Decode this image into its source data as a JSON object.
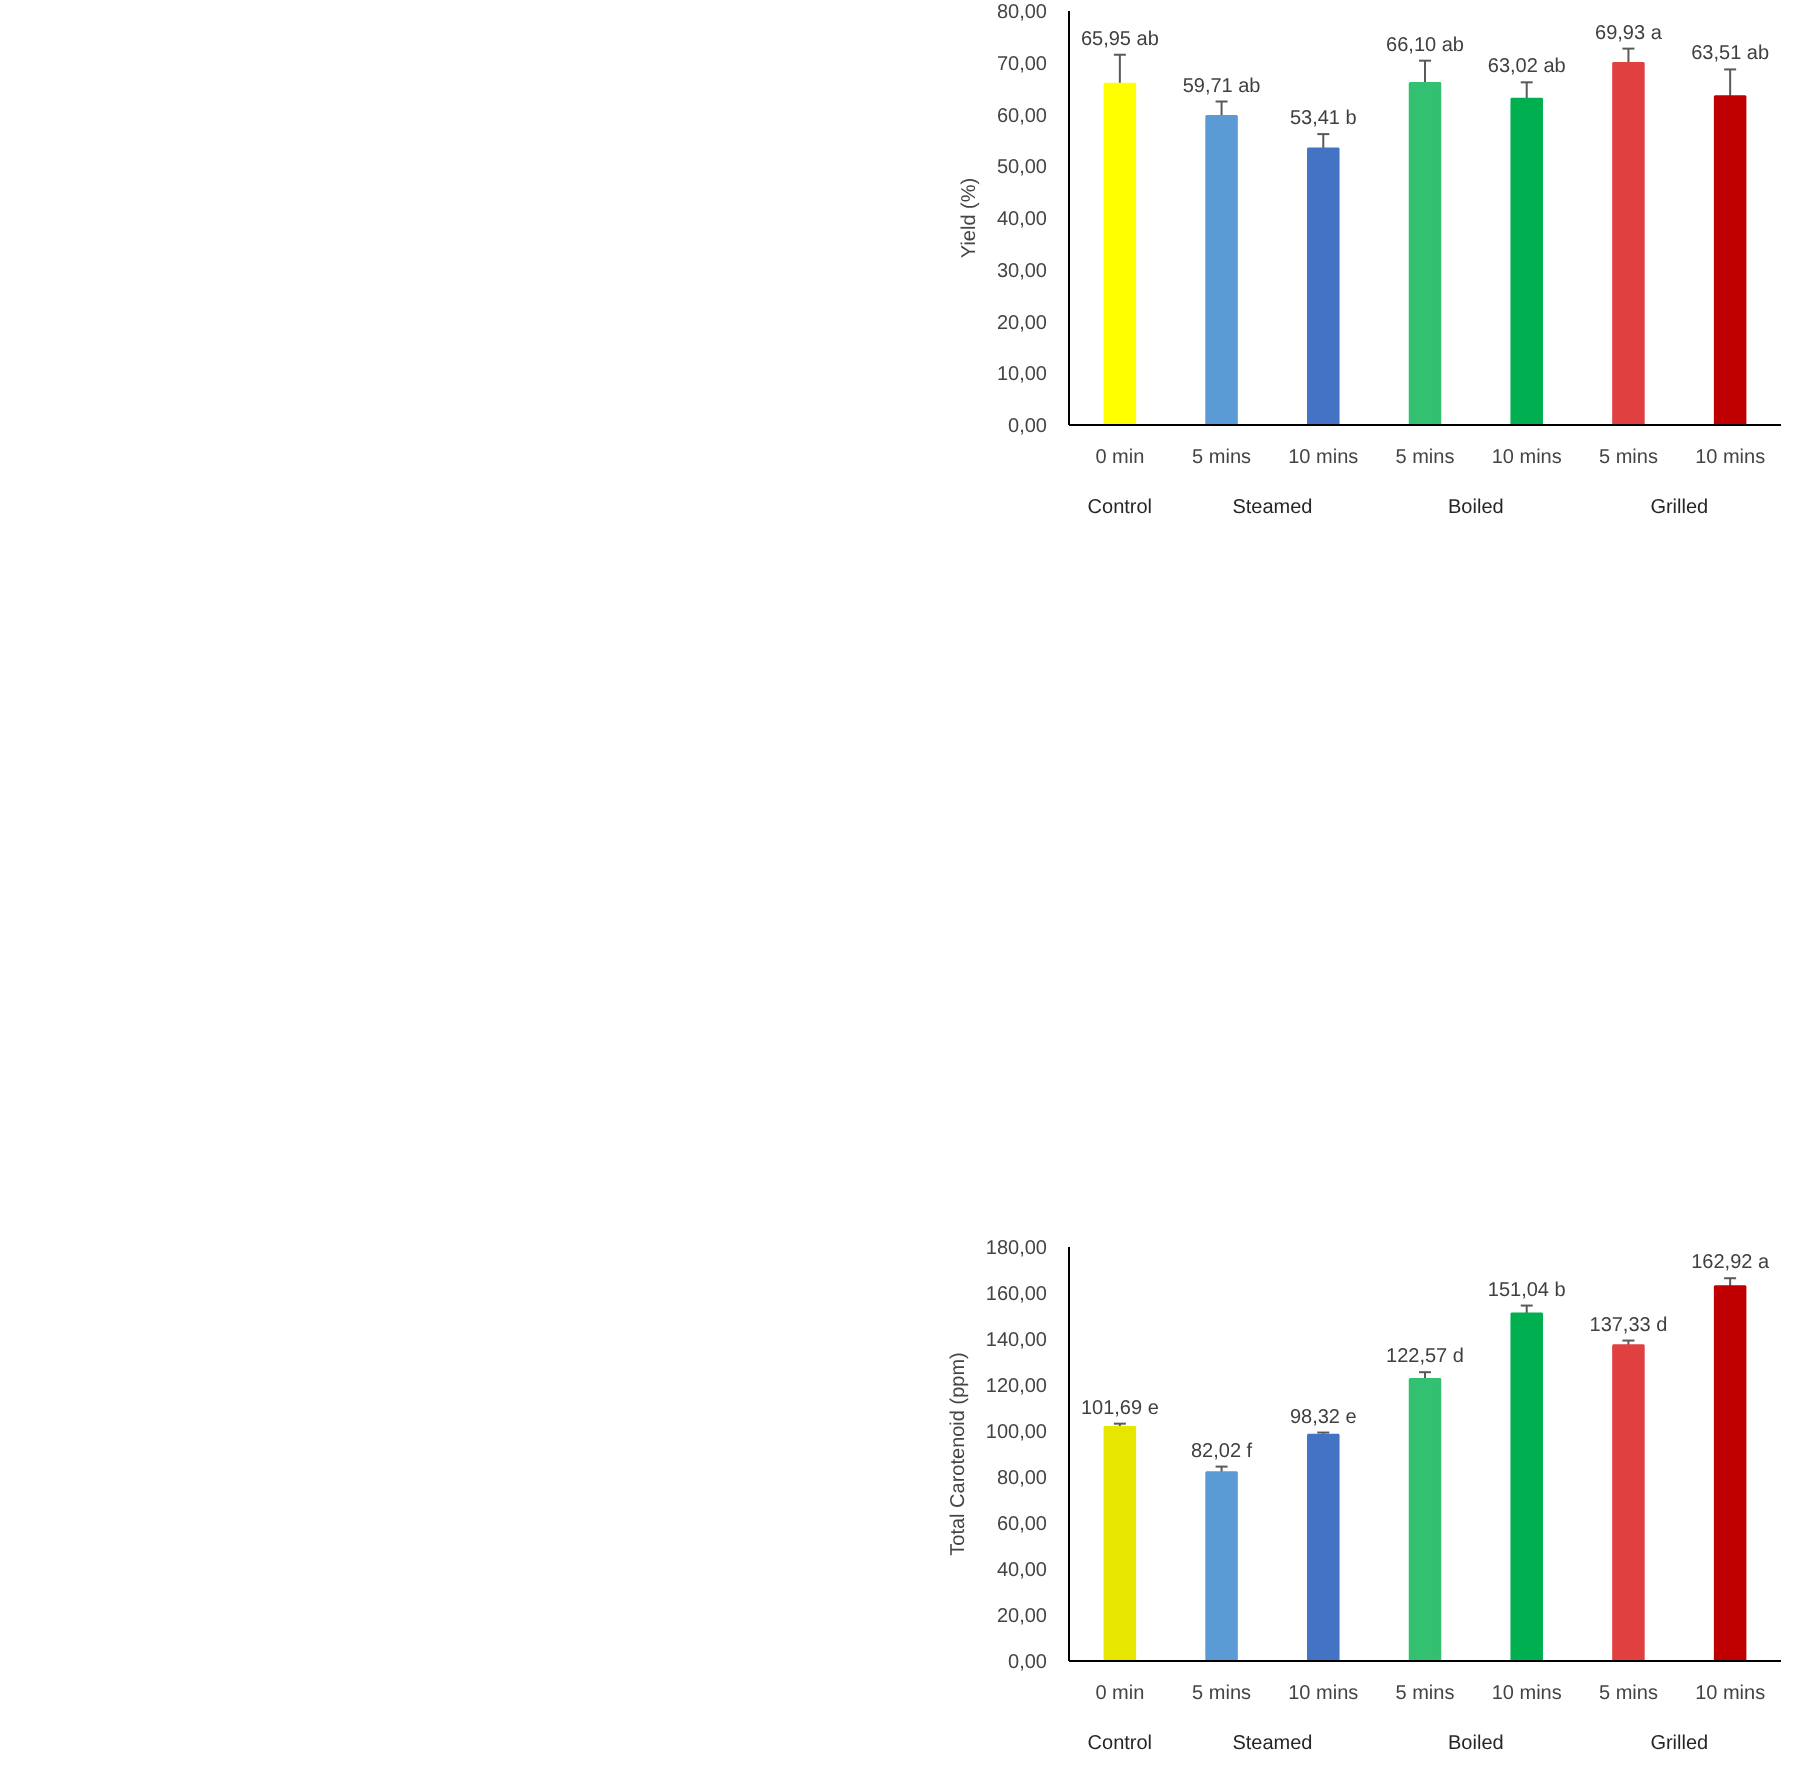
{
  "chart_data": [
    {
      "type": "bar",
      "ylabel": "Yield (%)",
      "categories": [
        "0 min",
        "5 mins",
        "10 mins",
        "5 mins",
        "10 mins",
        "5 mins",
        "10 mins"
      ],
      "values": [
        65.95,
        59.71,
        53.41,
        66.1,
        63.02,
        69.93,
        63.51
      ],
      "errors": [
        5.6,
        2.8,
        2.8,
        4.3,
        3.2,
        2.8,
        5.2
      ],
      "value_labels": [
        "65,95 ab",
        "59,71 ab",
        "53,41 b",
        "66,10 ab",
        "63,02 ab",
        "69,93 a",
        "63,51 ab"
      ],
      "colors": [
        "#ffff00",
        "#5b9bd5",
        "#4472c4",
        "#33c070",
        "#00b050",
        "#e04040",
        "#c00000"
      ],
      "annotations": [
        "Control",
        "Steamed",
        "Boiled",
        "Grilled"
      ],
      "ylim": [
        0,
        80
      ],
      "yticks": [
        {
          "value": 0,
          "label": "0,00"
        },
        {
          "value": 10,
          "label": "10,00"
        },
        {
          "value": 20,
          "label": "20,00"
        },
        {
          "value": 30,
          "label": "30,00"
        },
        {
          "value": 40,
          "label": "40,00"
        },
        {
          "value": 50,
          "label": "50,00"
        },
        {
          "value": 60,
          "label": "60,00"
        },
        {
          "value": 70,
          "label": "70,00"
        },
        {
          "value": 80,
          "label": "80,00"
        }
      ]
    },
    {
      "type": "bar",
      "ylabel": "Total Carotenoid (ppm)",
      "categories": [
        "0 min",
        "5 mins",
        "10 mins",
        "5 mins",
        "10 mins",
        "5 mins",
        "10 mins"
      ],
      "values": [
        101.69,
        82.02,
        98.32,
        122.57,
        151.04,
        137.33,
        162.92
      ],
      "errors": [
        1.5,
        2.5,
        1.0,
        3.0,
        3.5,
        2.0,
        3.5
      ],
      "value_labels": [
        "101,69 e",
        "82,02 f",
        "98,32 e",
        "122,57 d",
        "151,04 b",
        "137,33 d",
        "162,92 a"
      ],
      "colors": [
        "#e6e600",
        "#5b9bd5",
        "#4472c4",
        "#33c070",
        "#00b050",
        "#e04040",
        "#c00000"
      ],
      "annotations": [
        "Control",
        "Steamed",
        "Boiled",
        "Grilled"
      ],
      "ylim": [
        0,
        180
      ],
      "yticks": [
        {
          "value": 0,
          "label": "0,00"
        },
        {
          "value": 20,
          "label": "20,00"
        },
        {
          "value": 40,
          "label": "40,00"
        },
        {
          "value": 60,
          "label": "60,00"
        },
        {
          "value": 80,
          "label": "80,00"
        },
        {
          "value": 100,
          "label": "100,00"
        },
        {
          "value": 120,
          "label": "120,00"
        },
        {
          "value": 140,
          "label": "140,00"
        },
        {
          "value": 160,
          "label": "160,00"
        },
        {
          "value": 180,
          "label": "180,00"
        }
      ]
    }
  ]
}
